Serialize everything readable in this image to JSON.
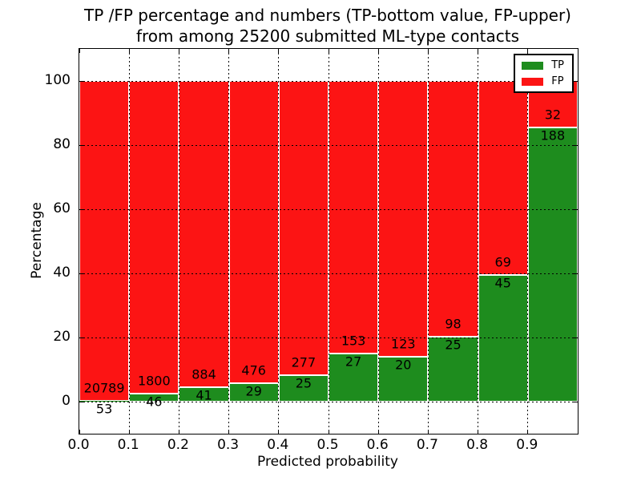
{
  "chart_data": {
    "type": "bar",
    "stacked": true,
    "title_line1": "TP /FP percentage and numbers (TP-bottom value, FP-upper)",
    "title_line2": "from among 25200 submitted ML-type contacts",
    "total_submitted": 25200,
    "xlabel": "Predicted probability",
    "ylabel": "Percentage",
    "xlim": [
      0.0,
      1.0
    ],
    "ylim": [
      -10,
      110
    ],
    "bin_width": 0.1,
    "bin_starts": [
      0.0,
      0.1,
      0.2,
      0.3,
      0.4,
      0.5,
      0.6,
      0.7,
      0.8,
      0.9
    ],
    "xtick_labels": [
      "0.0",
      "0.1",
      "0.2",
      "0.3",
      "0.4",
      "0.5",
      "0.6",
      "0.7",
      "0.8",
      "0.9"
    ],
    "ytick_values": [
      0,
      20,
      40,
      60,
      80,
      100
    ],
    "grid": "dotted",
    "legend_position": "upper right",
    "series": [
      {
        "name": "TP",
        "color": "#1e8c1e",
        "counts": [
          53,
          46,
          41,
          29,
          25,
          27,
          20,
          25,
          45,
          188
        ]
      },
      {
        "name": "FP",
        "color": "#fc1414",
        "counts": [
          20789,
          1800,
          884,
          476,
          277,
          153,
          123,
          98,
          69,
          32
        ]
      }
    ]
  }
}
